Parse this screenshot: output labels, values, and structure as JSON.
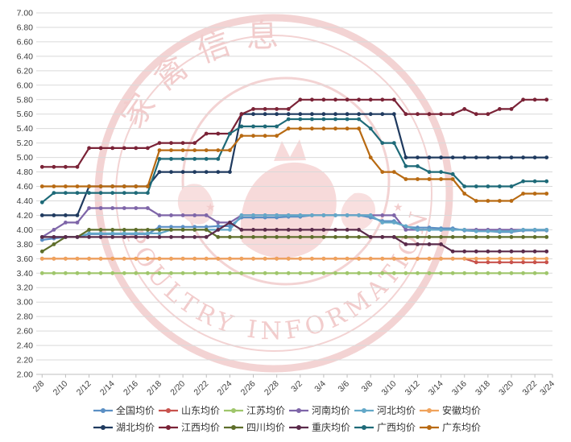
{
  "watermark": {
    "top_text": "家禽信息",
    "bottom_text": "POULTRY INFORMATION BULLETIN",
    "color": "#e8a3a3"
  },
  "chart_data": {
    "type": "line",
    "title": "",
    "xlabel": "",
    "ylabel": "",
    "ylim": [
      2.0,
      7.0
    ],
    "ytick_step": 0.2,
    "grid": true,
    "legend_position": "bottom",
    "x_tick_labels": [
      "2/8",
      "2/10",
      "2/12",
      "2/14",
      "2/16",
      "2/18",
      "2/20",
      "2/22",
      "2/24",
      "2/26",
      "2/28",
      "3/2",
      "3/4",
      "3/6",
      "3/8",
      "3/10",
      "3/12",
      "3/14",
      "3/16",
      "3/18",
      "3/20",
      "3/22",
      "3/24"
    ],
    "x": [
      "2/8",
      "2/9",
      "2/10",
      "2/11",
      "2/12",
      "2/13",
      "2/14",
      "2/15",
      "2/16",
      "2/17",
      "2/18",
      "2/19",
      "2/20",
      "2/21",
      "2/22",
      "2/23",
      "2/24",
      "2/25",
      "2/26",
      "2/27",
      "2/28",
      "3/1",
      "3/2",
      "3/3",
      "3/4",
      "3/5",
      "3/6",
      "3/7",
      "3/8",
      "3/9",
      "3/10",
      "3/11",
      "3/12",
      "3/13",
      "3/14",
      "3/15",
      "3/16",
      "3/17",
      "3/18",
      "3/19",
      "3/20",
      "3/21",
      "3/22",
      "3/23"
    ],
    "series": [
      {
        "name": "全国均价",
        "color": "#5b8fc4",
        "values": [
          3.86,
          3.88,
          3.9,
          3.9,
          3.94,
          3.94,
          3.94,
          3.94,
          3.94,
          3.94,
          4.04,
          4.04,
          4.04,
          4.04,
          4.04,
          4.05,
          4.05,
          4.17,
          4.17,
          4.17,
          4.17,
          4.18,
          4.18,
          4.2,
          4.2,
          4.2,
          4.2,
          4.2,
          4.17,
          4.12,
          4.12,
          4.04,
          4.03,
          4.03,
          4.02,
          4.02,
          3.99,
          3.98,
          3.98,
          3.97,
          3.97,
          3.99,
          3.99,
          3.99
        ]
      },
      {
        "name": "山东均价",
        "color": "#c8524d",
        "values": [
          3.6,
          3.6,
          3.6,
          3.6,
          3.6,
          3.6,
          3.6,
          3.6,
          3.6,
          3.6,
          3.6,
          3.6,
          3.6,
          3.6,
          3.6,
          3.6,
          3.6,
          3.6,
          3.6,
          3.6,
          3.6,
          3.6,
          3.6,
          3.6,
          3.6,
          3.6,
          3.6,
          3.6,
          3.6,
          3.6,
          3.6,
          3.6,
          3.6,
          3.6,
          3.6,
          3.6,
          3.6,
          3.55,
          3.55,
          3.55,
          3.55,
          3.55,
          3.55,
          3.55
        ]
      },
      {
        "name": "江苏均价",
        "color": "#9fc66b",
        "values": [
          3.4,
          3.4,
          3.4,
          3.4,
          3.4,
          3.4,
          3.4,
          3.4,
          3.4,
          3.4,
          3.4,
          3.4,
          3.4,
          3.4,
          3.4,
          3.4,
          3.4,
          3.4,
          3.4,
          3.4,
          3.4,
          3.4,
          3.4,
          3.4,
          3.4,
          3.4,
          3.4,
          3.4,
          3.4,
          3.4,
          3.4,
          3.4,
          3.4,
          3.4,
          3.4,
          3.4,
          3.4,
          3.4,
          3.4,
          3.4,
          3.4,
          3.4,
          3.4,
          3.4
        ]
      },
      {
        "name": "河南均价",
        "color": "#7e65a8",
        "values": [
          3.9,
          4.0,
          4.1,
          4.1,
          4.3,
          4.3,
          4.3,
          4.3,
          4.3,
          4.3,
          4.2,
          4.2,
          4.2,
          4.2,
          4.2,
          4.1,
          4.1,
          4.2,
          4.2,
          4.2,
          4.2,
          4.2,
          4.2,
          4.2,
          4.2,
          4.2,
          4.2,
          4.2,
          4.2,
          4.2,
          4.2,
          4.0,
          4.0,
          4.0,
          4.0,
          4.0,
          4.0,
          4.0,
          4.0,
          4.0,
          4.0,
          4.0,
          4.0,
          4.0
        ]
      },
      {
        "name": "河北均价",
        "color": "#63a8c8",
        "values": [
          3.9,
          3.9,
          3.9,
          3.9,
          3.95,
          3.95,
          3.95,
          3.95,
          3.95,
          3.95,
          3.95,
          4.0,
          4.0,
          4.0,
          4.0,
          4.0,
          4.0,
          4.2,
          4.2,
          4.2,
          4.2,
          4.2,
          4.2,
          4.2,
          4.2,
          4.2,
          4.2,
          4.2,
          4.2,
          4.1,
          4.1,
          4.05,
          4.0,
          4.0,
          4.0,
          4.0,
          4.0,
          3.98,
          3.98,
          3.98,
          3.98,
          4.0,
          4.0,
          4.0
        ]
      },
      {
        "name": "安徽均价",
        "color": "#f0a35c",
        "values": [
          3.6,
          3.6,
          3.6,
          3.6,
          3.6,
          3.6,
          3.6,
          3.6,
          3.6,
          3.6,
          3.6,
          3.6,
          3.6,
          3.6,
          3.6,
          3.6,
          3.6,
          3.6,
          3.6,
          3.6,
          3.6,
          3.6,
          3.6,
          3.6,
          3.6,
          3.6,
          3.6,
          3.6,
          3.6,
          3.6,
          3.6,
          3.6,
          3.6,
          3.6,
          3.6,
          3.6,
          3.6,
          3.6,
          3.6,
          3.6,
          3.6,
          3.6,
          3.6,
          3.6
        ]
      },
      {
        "name": "湖北均价",
        "color": "#1f3a5f",
        "values": [
          4.2,
          4.2,
          4.2,
          4.2,
          4.6,
          4.6,
          4.6,
          4.6,
          4.6,
          4.6,
          4.8,
          4.8,
          4.8,
          4.8,
          4.8,
          4.8,
          4.8,
          5.6,
          5.6,
          5.6,
          5.6,
          5.6,
          5.6,
          5.6,
          5.6,
          5.6,
          5.6,
          5.6,
          5.6,
          5.6,
          5.6,
          5.0,
          5.0,
          5.0,
          5.0,
          5.0,
          5.0,
          5.0,
          5.0,
          5.0,
          5.0,
          5.0,
          5.0,
          5.0
        ]
      },
      {
        "name": "江西均价",
        "color": "#7a2236",
        "values": [
          4.87,
          4.87,
          4.87,
          4.87,
          5.13,
          5.13,
          5.13,
          5.13,
          5.13,
          5.13,
          5.2,
          5.2,
          5.2,
          5.2,
          5.33,
          5.33,
          5.33,
          5.6,
          5.67,
          5.67,
          5.67,
          5.67,
          5.8,
          5.8,
          5.8,
          5.8,
          5.8,
          5.8,
          5.8,
          5.8,
          5.8,
          5.6,
          5.6,
          5.6,
          5.6,
          5.6,
          5.67,
          5.6,
          5.6,
          5.67,
          5.67,
          5.8,
          5.8,
          5.8
        ]
      },
      {
        "name": "四川均价",
        "color": "#5e6e2a",
        "values": [
          3.7,
          3.8,
          3.9,
          3.9,
          4.0,
          4.0,
          4.0,
          4.0,
          4.0,
          4.0,
          4.0,
          4.0,
          4.0,
          4.0,
          4.0,
          3.9,
          3.9,
          3.9,
          3.9,
          3.9,
          3.9,
          3.9,
          3.9,
          3.9,
          3.9,
          3.9,
          3.9,
          3.9,
          3.9,
          3.9,
          3.9,
          3.9,
          3.9,
          3.9,
          3.9,
          3.9,
          3.9,
          3.9,
          3.9,
          3.9,
          3.9,
          3.9,
          3.9,
          3.9
        ]
      },
      {
        "name": "重庆均价",
        "color": "#5a2a4a",
        "values": [
          3.9,
          3.9,
          3.9,
          3.9,
          3.9,
          3.9,
          3.9,
          3.9,
          3.9,
          3.9,
          3.9,
          3.9,
          3.9,
          3.9,
          3.9,
          4.0,
          4.1,
          4.0,
          4.0,
          4.0,
          4.0,
          4.0,
          4.0,
          4.0,
          4.0,
          4.0,
          4.0,
          4.0,
          3.9,
          3.9,
          3.9,
          3.8,
          3.8,
          3.8,
          3.8,
          3.7,
          3.7,
          3.7,
          3.7,
          3.7,
          3.7,
          3.7,
          3.7,
          3.7
        ]
      },
      {
        "name": "广西均价",
        "color": "#1e6a78",
        "values": [
          4.38,
          4.51,
          4.51,
          4.51,
          4.51,
          4.51,
          4.51,
          4.51,
          4.51,
          4.51,
          4.98,
          4.98,
          4.98,
          4.98,
          4.98,
          4.98,
          5.33,
          5.43,
          5.43,
          5.43,
          5.43,
          5.53,
          5.53,
          5.53,
          5.53,
          5.53,
          5.53,
          5.53,
          5.4,
          5.2,
          5.2,
          4.88,
          4.88,
          4.8,
          4.8,
          4.77,
          4.6,
          4.6,
          4.6,
          4.6,
          4.6,
          4.67,
          4.67,
          4.67
        ]
      },
      {
        "name": "广东均价",
        "color": "#b86a12",
        "values": [
          4.6,
          4.6,
          4.6,
          4.6,
          4.6,
          4.6,
          4.6,
          4.6,
          4.6,
          4.6,
          5.1,
          5.1,
          5.1,
          5.1,
          5.1,
          5.1,
          5.1,
          5.3,
          5.3,
          5.3,
          5.3,
          5.4,
          5.4,
          5.4,
          5.4,
          5.4,
          5.4,
          5.4,
          5.0,
          4.8,
          4.8,
          4.7,
          4.7,
          4.7,
          4.7,
          4.7,
          4.5,
          4.4,
          4.4,
          4.4,
          4.4,
          4.5,
          4.5,
          4.5
        ]
      }
    ]
  }
}
